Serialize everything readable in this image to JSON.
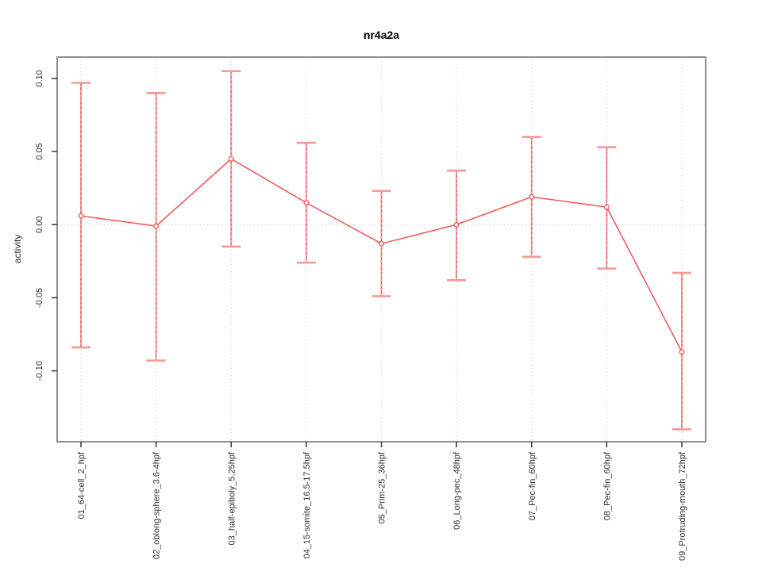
{
  "chart_data": {
    "type": "line",
    "title": "nr4a2a",
    "xlabel": "",
    "ylabel": "activity",
    "legend": "none",
    "marker": "open-circle",
    "categories": [
      "01_64-cell_2_hpf",
      "02_oblong-sphere_3.6-4hpf",
      "03_half-epiboly_5.25hpf",
      "04_15-somite_16.5-17.5hpf",
      "05_Prim-25_36hpf",
      "06_Long-pec_48hpf",
      "07_Pec-fin_60hpf",
      "08_Pec-fin_60hpf",
      "09_Protruding-mouth_72hpf"
    ],
    "series": [
      {
        "name": "nr4a2a activity",
        "values": [
          0.006,
          -0.001,
          0.045,
          0.015,
          -0.013,
          0.0,
          0.019,
          0.012,
          -0.087
        ],
        "error_upper": [
          0.097,
          0.09,
          0.105,
          0.056,
          0.023,
          0.037,
          0.06,
          0.053,
          -0.033
        ],
        "error_lower": [
          -0.084,
          -0.093,
          -0.015,
          -0.026,
          -0.049,
          -0.038,
          -0.022,
          -0.03,
          -0.14
        ]
      }
    ],
    "ytick_labels": [
      "0.10",
      "0.05",
      "0.00",
      "-0.05",
      "-0.10"
    ],
    "ytick_values": [
      0.1,
      0.05,
      0.0,
      -0.05,
      -0.1
    ],
    "ylim": [
      -0.1485,
      0.1146
    ],
    "grid": {
      "vertical": "dotted line at each category",
      "horizontal_at": [
        0
      ],
      "style": "dotted"
    },
    "colors": {
      "line": "#f15353",
      "marker": "#f15353",
      "errorbar_solid": "#f49a9a",
      "errorbar_dashed": "#ee5555",
      "grid": "#d6d6d6",
      "box": "#8f8f8f",
      "tick": "#333333",
      "tick_label": "#303030",
      "title": "#000000",
      "background": "#ffffff"
    }
  }
}
